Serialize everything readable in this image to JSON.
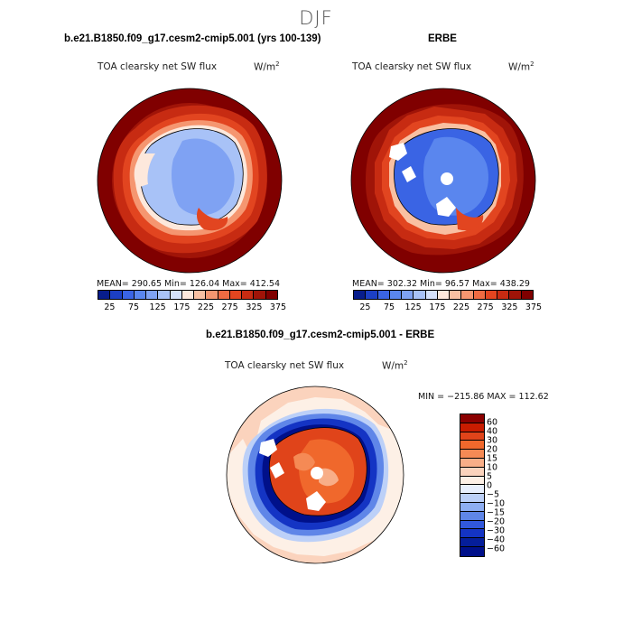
{
  "page": {
    "season": "DJF"
  },
  "panels": [
    {
      "title": "b.e21.B1850.f09_g17.cesm2-cmip5.001 (yrs 100-139)",
      "variable": "TOA clearsky net SW flux",
      "units_base": "W/m",
      "units_exp": "2",
      "stats": "MEAN= 290.65   Min= 126.04   Max= 412.54",
      "colorbar_labels": [
        "25",
        "75",
        "125",
        "175",
        "225",
        "275",
        "325",
        "375"
      ]
    },
    {
      "title": "ERBE",
      "variable": "TOA clearsky net SW flux",
      "units_base": "W/m",
      "units_exp": "2",
      "stats": "MEAN= 302.32   Min= 96.57   Max= 438.29",
      "colorbar_labels": [
        "25",
        "75",
        "125",
        "175",
        "225",
        "275",
        "325",
        "375"
      ]
    }
  ],
  "difference": {
    "title": "b.e21.B1850.f09_g17.cesm2-cmip5.001 - ERBE",
    "variable": "TOA clearsky net SW flux",
    "units_base": "W/m",
    "units_exp": "2",
    "stats": "MIN = −215.86  MAX = 112.62",
    "colorbar_labels": [
      "60",
      "40",
      "30",
      "20",
      "15",
      "10",
      "5",
      "0",
      "−5",
      "−10",
      "−15",
      "−20",
      "−30",
      "−40",
      "−60"
    ]
  },
  "colors": {
    "abs_scale": [
      "#081d8c",
      "#1c3fc4",
      "#3a64e4",
      "#5a86ee",
      "#7fa2f3",
      "#a8c2f7",
      "#d4e1fb",
      "#fde8dc",
      "#f9c0a2",
      "#f59670",
      "#ef6b42",
      "#e24520",
      "#c72b12",
      "#a01408",
      "#800000"
    ],
    "diff_scale": [
      "#8b0000",
      "#c81c00",
      "#e0441a",
      "#f0682c",
      "#f58a55",
      "#f8ae88",
      "#fbd3bd",
      "#fdf0e6",
      "#e8effd",
      "#bcd0f8",
      "#8eaef2",
      "#5f86e8",
      "#3158dc",
      "#1434c4",
      "#051e9a",
      "#00108a"
    ]
  }
}
